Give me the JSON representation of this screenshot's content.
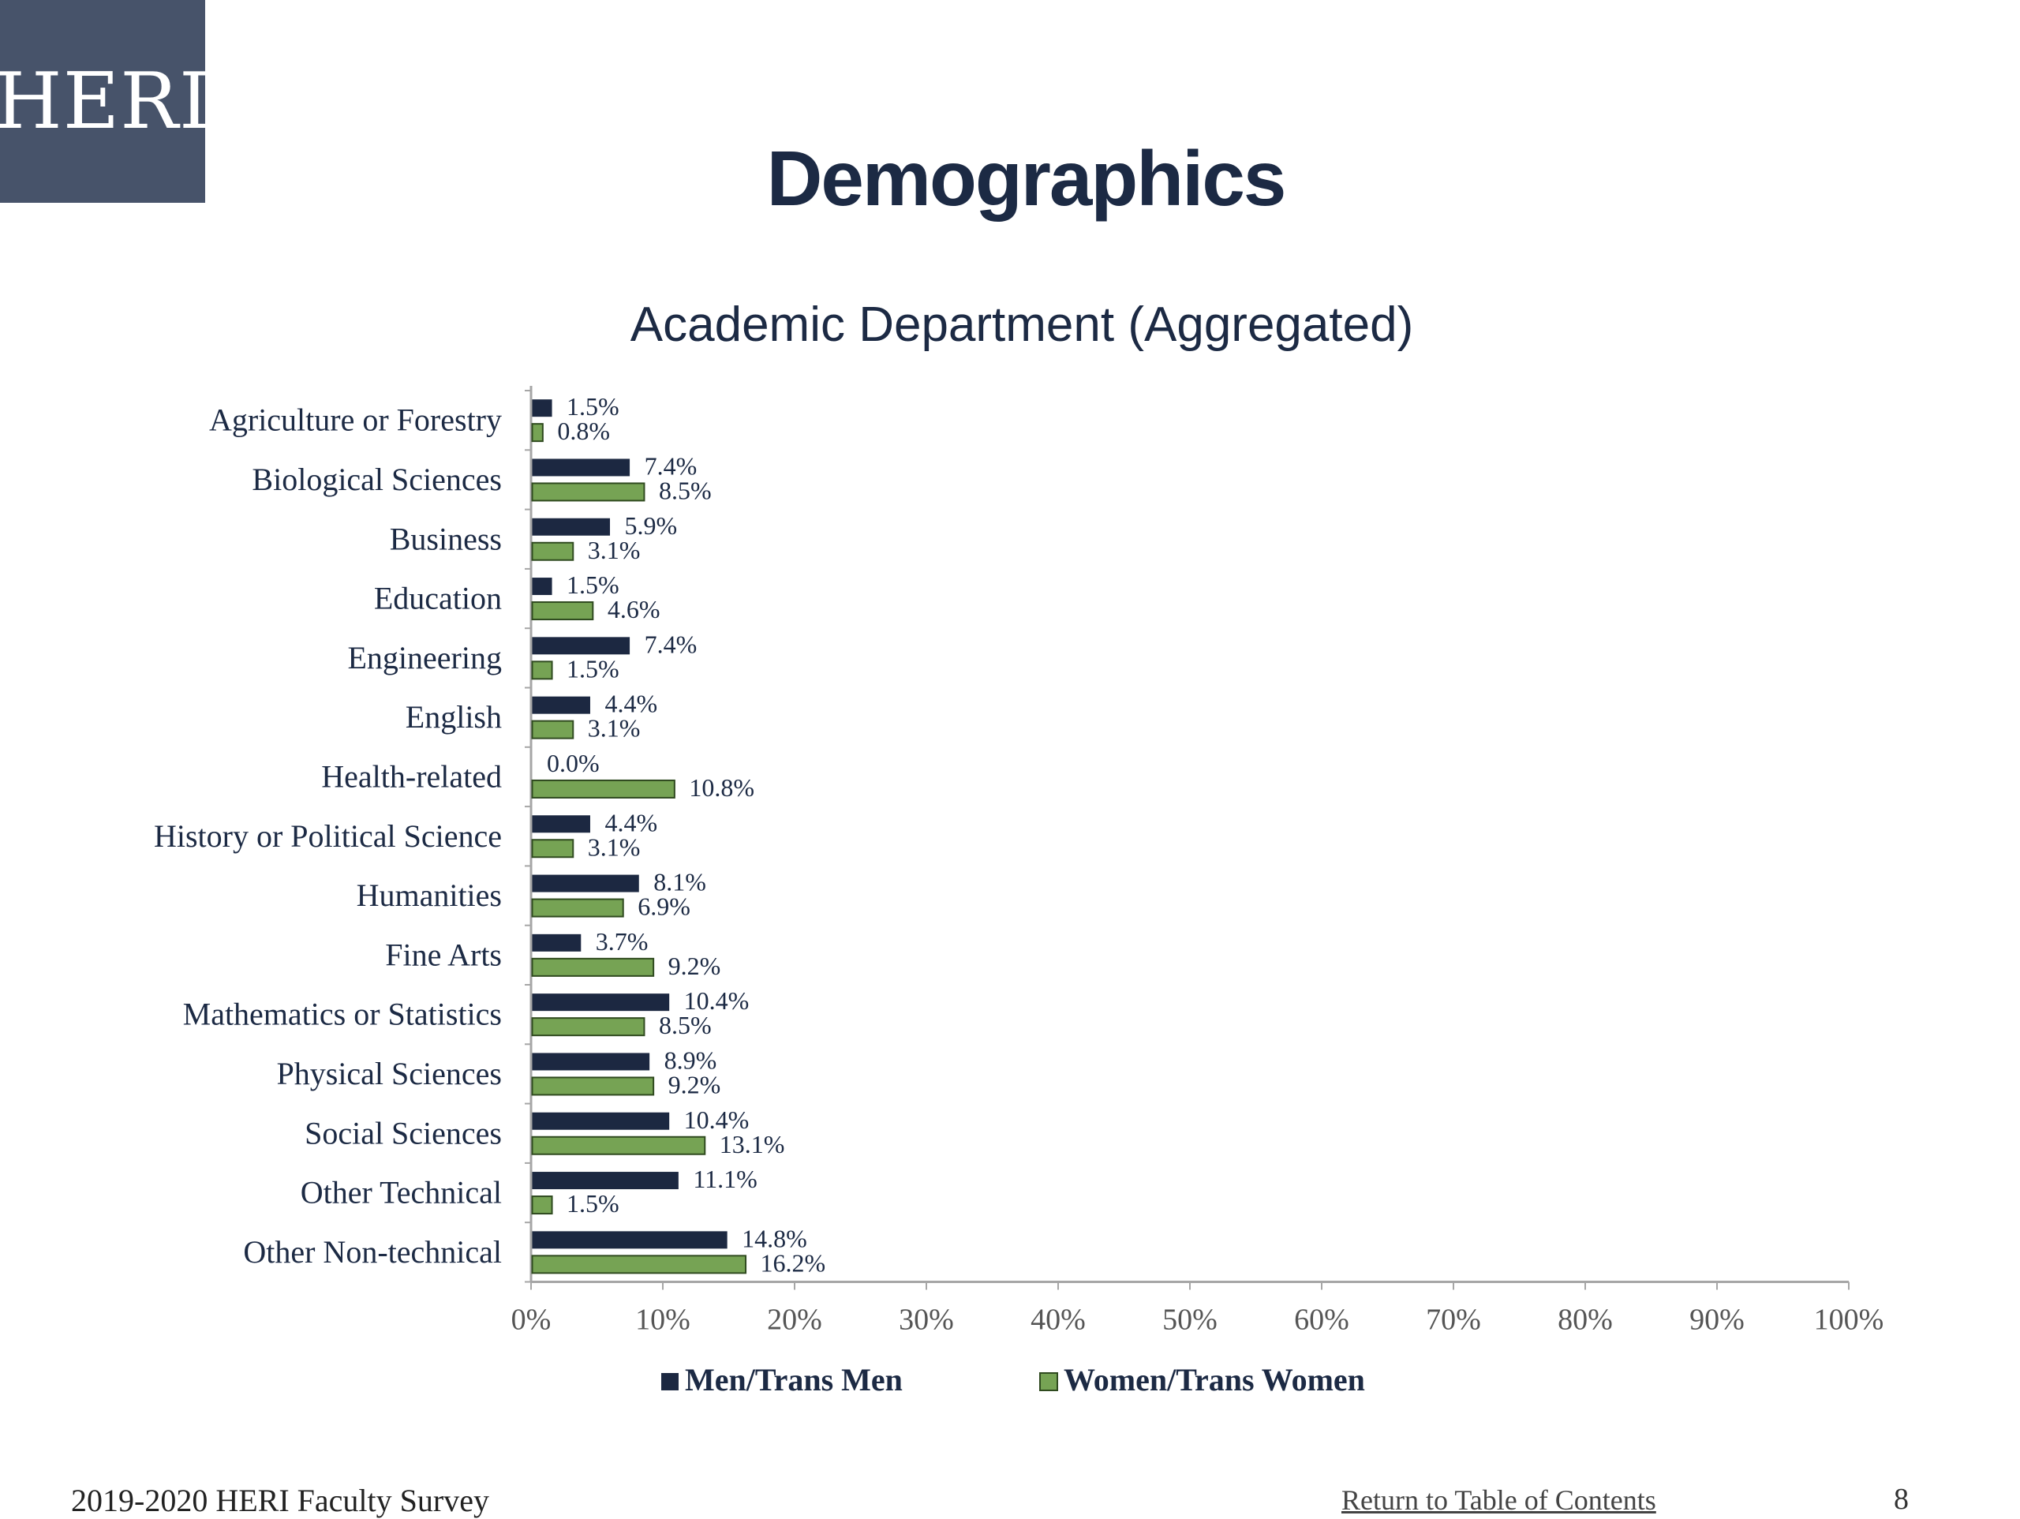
{
  "logo": {
    "text": "HERI"
  },
  "page": {
    "title": "Demographics"
  },
  "footer": {
    "survey": "2019-2020 HERI Faculty Survey",
    "toc_link": "Return to Table of Contents",
    "page_number": "8"
  },
  "colors": {
    "men": "#1c2841",
    "women": "#76a354",
    "axis": "#a6a6a6",
    "text": "#1c2a44"
  },
  "chart_data": {
    "type": "bar",
    "orientation": "horizontal",
    "title": "Academic Department (Aggregated)",
    "categories": [
      "Agriculture or Forestry",
      "Biological Sciences",
      "Business",
      "Education",
      "Engineering",
      "English",
      "Health-related",
      "History or Political Science",
      "Humanities",
      "Fine Arts",
      "Mathematics or Statistics",
      "Physical Sciences",
      "Social Sciences",
      "Other Technical",
      "Other Non-technical"
    ],
    "series": [
      {
        "name": "Men/Trans Men",
        "values": [
          1.5,
          7.4,
          5.9,
          1.5,
          7.4,
          4.4,
          0.0,
          4.4,
          8.1,
          3.7,
          10.4,
          8.9,
          10.4,
          11.1,
          14.8
        ]
      },
      {
        "name": "Women/Trans Women",
        "values": [
          0.8,
          8.5,
          3.1,
          4.6,
          1.5,
          3.1,
          10.8,
          3.1,
          6.9,
          9.2,
          8.5,
          9.2,
          13.1,
          1.5,
          16.2
        ]
      }
    ],
    "value_labels": [
      [
        "1.5%",
        "7.4%",
        "5.9%",
        "1.5%",
        "7.4%",
        "4.4%",
        "0.0%",
        "4.4%",
        "8.1%",
        "3.7%",
        "10.4%",
        "8.9%",
        "10.4%",
        "11.1%",
        "14.8%"
      ],
      [
        "0.8%",
        "8.5%",
        "3.1%",
        "4.6%",
        "1.5%",
        "3.1%",
        "10.8%",
        "3.1%",
        "6.9%",
        "9.2%",
        "8.5%",
        "9.2%",
        "13.1%",
        "1.5%",
        "16.2%"
      ]
    ],
    "x_ticks": [
      "0%",
      "10%",
      "20%",
      "30%",
      "40%",
      "50%",
      "60%",
      "70%",
      "80%",
      "90%",
      "100%"
    ],
    "xlim": [
      0,
      100
    ],
    "grid": false,
    "legend_position": "bottom"
  }
}
